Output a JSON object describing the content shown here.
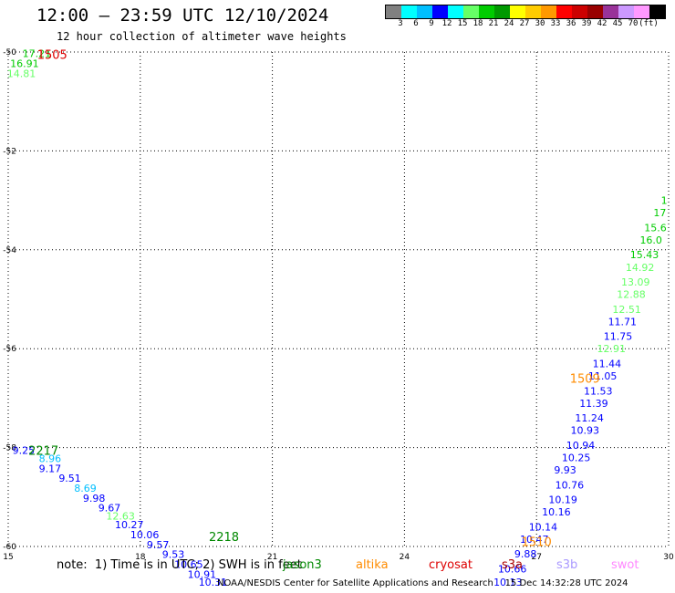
{
  "title": "12:00 – 23:59 UTC 12/10/2024",
  "subtitle": "12 hour collection of altimeter wave heights",
  "colorbar": {
    "colors": [
      "#808080",
      "#00ffff",
      "#00bfff",
      "#0000ff",
      "#00ffff",
      "#66ff66",
      "#00cc00",
      "#009900",
      "#ffff00",
      "#ffcc00",
      "#ff9900",
      "#ff0000",
      "#cc0000",
      "#990000",
      "#993399",
      "#cc99ff",
      "#ff99ff",
      "#000000"
    ],
    "labels": [
      "3",
      "6",
      "9",
      "12",
      "15",
      "18",
      "21",
      "24",
      "27",
      "30",
      "33",
      "36",
      "39",
      "42",
      "45",
      "70",
      "(ft)"
    ]
  },
  "note": "note:  1) Time is in UTC; 2) SWH is in feet",
  "legend": [
    {
      "name": "jason3",
      "color": "#008800"
    },
    {
      "name": "altika",
      "color": "#ff8c00"
    },
    {
      "name": "cryosat",
      "color": "#dd0000"
    },
    {
      "name": "s3a",
      "color": "#aa0000"
    },
    {
      "name": "s3b",
      "color": "#aa99ff"
    },
    {
      "name": "swot",
      "color": "#ff88ff"
    }
  ],
  "footer": "NOAA/NESDIS Center for Satellite Applications and Research    15 Dec 14:32:28 UTC 2024",
  "chart_data": {
    "type": "scatter",
    "xlim": [
      15,
      30
    ],
    "ylim": [
      -60,
      -50
    ],
    "xticks": [
      15,
      18,
      21,
      24,
      27,
      30
    ],
    "yticks": [
      -50,
      -52,
      -54,
      -56,
      -58,
      -60
    ],
    "grid": true,
    "time_labels": [
      {
        "text": "1505",
        "x": 16.0,
        "y": -50.05,
        "color": "#dd0000"
      },
      {
        "text": "2217",
        "x": 15.8,
        "y": -58.05,
        "color": "#008800"
      },
      {
        "text": "2218",
        "x": 19.9,
        "y": -59.8,
        "color": "#008800"
      },
      {
        "text": "1509",
        "x": 28.1,
        "y": -56.6,
        "color": "#ff8c00"
      },
      {
        "text": "1510",
        "x": 27.0,
        "y": -59.9,
        "color": "#ff8c00"
      }
    ],
    "points": [
      {
        "x": 15.65,
        "y": -50.03,
        "v": "17.21",
        "color": "#00cc00"
      },
      {
        "x": 15.37,
        "y": -50.23,
        "v": "16.91",
        "color": "#00cc00"
      },
      {
        "x": 15.3,
        "y": -50.43,
        "v": "14.81",
        "color": "#66ff66"
      },
      {
        "x": 15.35,
        "y": -58.05,
        "v": "9.25",
        "color": "#0000ff"
      },
      {
        "x": 15.95,
        "y": -58.22,
        "v": "8.96",
        "color": "#00bfff"
      },
      {
        "x": 15.95,
        "y": -58.42,
        "v": "9.17",
        "color": "#0000ff"
      },
      {
        "x": 16.4,
        "y": -58.62,
        "v": "9.51",
        "color": "#0000ff"
      },
      {
        "x": 16.75,
        "y": -58.82,
        "v": "8.69",
        "color": "#00bfff"
      },
      {
        "x": 16.95,
        "y": -59.02,
        "v": "9.98",
        "color": "#0000ff"
      },
      {
        "x": 17.3,
        "y": -59.22,
        "v": "9.67",
        "color": "#0000ff"
      },
      {
        "x": 17.55,
        "y": -59.38,
        "v": "12.63",
        "color": "#66ff66"
      },
      {
        "x": 17.75,
        "y": -59.56,
        "v": "10.27",
        "color": "#0000ff"
      },
      {
        "x": 18.1,
        "y": -59.76,
        "v": "10.06",
        "color": "#0000ff"
      },
      {
        "x": 18.4,
        "y": -59.96,
        "v": "9.57",
        "color": "#0000ff"
      },
      {
        "x": 18.75,
        "y": -60.16,
        "v": "9.53",
        "color": "#0000ff"
      },
      {
        "x": 19.1,
        "y": -60.36,
        "v": "10.65",
        "color": "#0000ff"
      },
      {
        "x": 19.4,
        "y": -60.56,
        "v": "10.91",
        "color": "#0000ff"
      },
      {
        "x": 19.65,
        "y": -60.72,
        "v": "10.31",
        "color": "#0000ff"
      },
      {
        "x": 26.35,
        "y": -60.72,
        "v": "10.13",
        "color": "#0000ff"
      },
      {
        "x": 26.45,
        "y": -60.45,
        "v": "10.66",
        "color": "#0000ff"
      },
      {
        "x": 26.75,
        "y": -60.15,
        "v": "9.88",
        "color": "#0000ff"
      },
      {
        "x": 26.95,
        "y": -59.85,
        "v": "10.47",
        "color": "#0000ff"
      },
      {
        "x": 27.15,
        "y": -59.6,
        "v": "10.14",
        "color": "#0000ff"
      },
      {
        "x": 27.45,
        "y": -59.3,
        "v": "10.16",
        "color": "#0000ff"
      },
      {
        "x": 27.6,
        "y": -59.05,
        "v": "10.19",
        "color": "#0000ff"
      },
      {
        "x": 27.75,
        "y": -58.75,
        "v": "10.76",
        "color": "#0000ff"
      },
      {
        "x": 27.65,
        "y": -58.45,
        "v": "9.93",
        "color": "#0000ff"
      },
      {
        "x": 27.9,
        "y": -58.2,
        "v": "10.25",
        "color": "#0000ff"
      },
      {
        "x": 28.0,
        "y": -57.95,
        "v": "10.94",
        "color": "#0000ff"
      },
      {
        "x": 28.1,
        "y": -57.65,
        "v": "10.93",
        "color": "#0000ff"
      },
      {
        "x": 28.2,
        "y": -57.4,
        "v": "11.24",
        "color": "#0000ff"
      },
      {
        "x": 28.3,
        "y": -57.1,
        "v": "11.39",
        "color": "#0000ff"
      },
      {
        "x": 28.4,
        "y": -56.85,
        "v": "11.53",
        "color": "#0000ff"
      },
      {
        "x": 28.5,
        "y": -56.55,
        "v": "11.05",
        "color": "#0000ff"
      },
      {
        "x": 28.6,
        "y": -56.3,
        "v": "11.44",
        "color": "#0000ff"
      },
      {
        "x": 28.7,
        "y": -56.0,
        "v": "12.91",
        "color": "#66ff66"
      },
      {
        "x": 28.85,
        "y": -55.75,
        "v": "11.75",
        "color": "#0000ff"
      },
      {
        "x": 28.95,
        "y": -55.45,
        "v": "11.71",
        "color": "#0000ff"
      },
      {
        "x": 29.05,
        "y": -55.2,
        "v": "12.51",
        "color": "#66ff66"
      },
      {
        "x": 29.15,
        "y": -54.9,
        "v": "12.88",
        "color": "#66ff66"
      },
      {
        "x": 29.25,
        "y": -54.65,
        "v": "13.09",
        "color": "#66ff66"
      },
      {
        "x": 29.35,
        "y": -54.35,
        "v": "14.92",
        "color": "#66ff66"
      },
      {
        "x": 29.45,
        "y": -54.1,
        "v": "15.43",
        "color": "#00cc00"
      },
      {
        "x": 29.6,
        "y": -53.8,
        "v": "16.0",
        "color": "#00cc00"
      },
      {
        "x": 29.7,
        "y": -53.55,
        "v": "15.6",
        "color": "#00cc00"
      },
      {
        "x": 29.8,
        "y": -53.25,
        "v": "17",
        "color": "#00cc00"
      },
      {
        "x": 29.9,
        "y": -53.0,
        "v": "1",
        "color": "#00cc00"
      }
    ]
  }
}
